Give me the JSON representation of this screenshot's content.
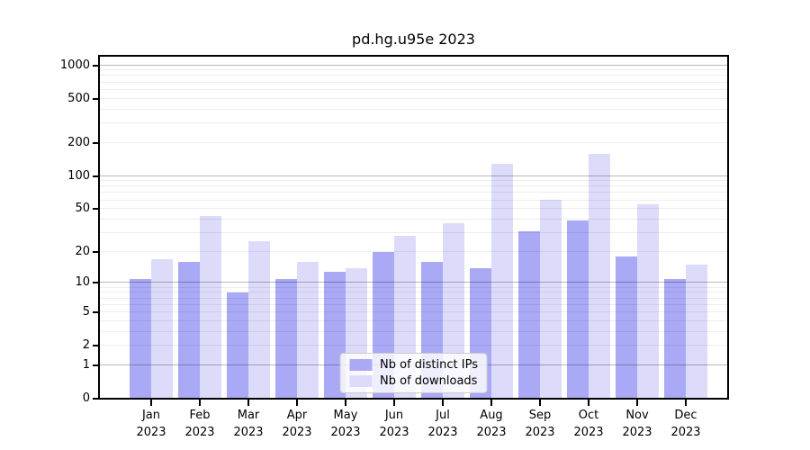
{
  "chart_data": {
    "type": "bar",
    "title": "pd.hg.u95e 2023",
    "categories": [
      "Jan",
      "Feb",
      "Mar",
      "Apr",
      "May",
      "Jun",
      "Jul",
      "Aug",
      "Sep",
      "Oct",
      "Nov",
      "Dec"
    ],
    "x_year": "2023",
    "series": [
      {
        "name": "Nb of distinct IPs",
        "color": "#a9a9f6",
        "values": [
          11,
          16,
          8,
          11,
          13,
          20,
          16,
          14,
          31,
          39,
          18,
          11
        ]
      },
      {
        "name": "Nb of downloads",
        "color": "#dcdcfa",
        "values": [
          17,
          43,
          25,
          16,
          14,
          28,
          37,
          128,
          61,
          160,
          55,
          15
        ]
      }
    ],
    "yscale": "log1p",
    "yticks": [
      0,
      1,
      2,
      5,
      10,
      20,
      50,
      100,
      200,
      500,
      1000
    ],
    "ylim": [
      0,
      1216
    ],
    "grid": true,
    "legend_position": "lower center"
  }
}
